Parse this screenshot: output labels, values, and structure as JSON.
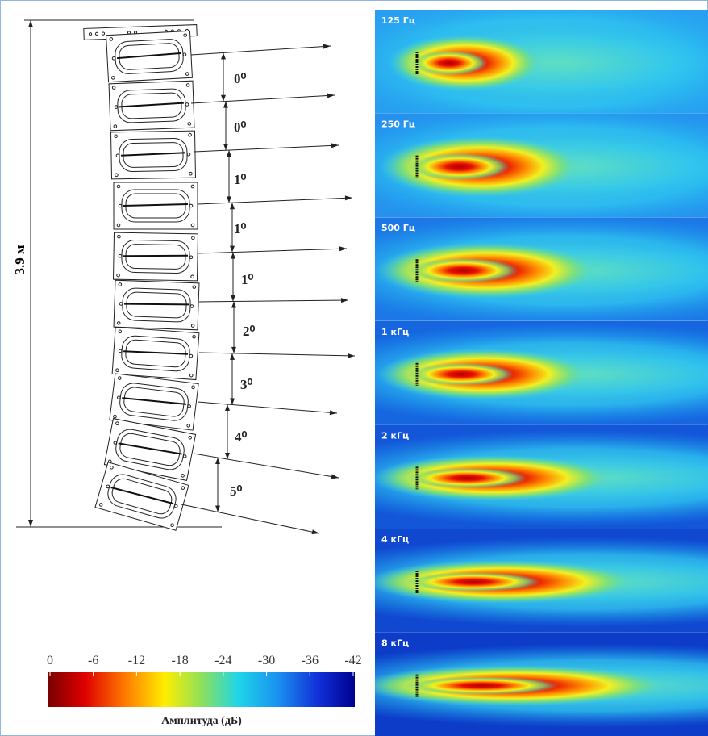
{
  "diagram": {
    "height_label": "3.9 м",
    "angles": [
      "0⁰",
      "0⁰",
      "1⁰",
      "1⁰",
      "1⁰",
      "2⁰",
      "3⁰",
      "4⁰",
      "5⁰"
    ]
  },
  "colorbar": {
    "ticks": [
      0,
      -6,
      -12,
      -18,
      -24,
      -30,
      -36,
      -42
    ],
    "label": "Амплитуда (дБ)"
  },
  "panels": [
    {
      "label": "125 Гц"
    },
    {
      "label": "250 Гц"
    },
    {
      "label": "500 Гц"
    },
    {
      "label": "1 кГц"
    },
    {
      "label": "2 кГц"
    },
    {
      "label": "4 кГц"
    },
    {
      "label": "8 кГц"
    }
  ]
}
